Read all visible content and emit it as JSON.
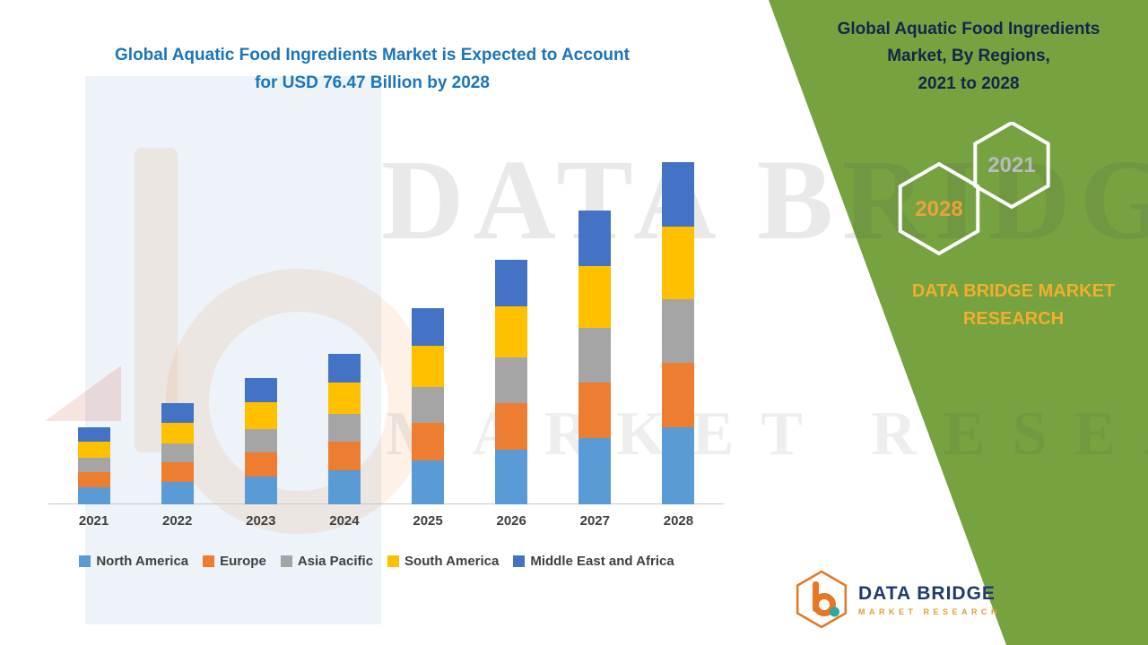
{
  "title": {
    "line1": "Global Aquatic Food Ingredients Market is Expected to Account",
    "line2": "for USD 76.47 Billion by 2028",
    "color": "#1B75BC"
  },
  "panel": {
    "bg_color": "#76A240",
    "heading_lines": [
      "Global Aquatic Food Ingredients",
      "Market, By Regions,",
      "2021 to 2028"
    ],
    "heading_color": "#10284a",
    "badge_back": "2021",
    "badge_back_color": "#b9bbbd",
    "badge_front": "2028",
    "badge_front_color": "#E8A33D",
    "brand_line1": "DATA BRIDGE MARKET",
    "brand_line2": "RESEARCH",
    "brand_color": "#EFAF2E"
  },
  "watermark": {
    "line1": "DATA BRIDGE",
    "line2": "MARKET RESEARCH"
  },
  "logo": {
    "name": "DATA BRIDGE",
    "sub": "MARKET RESEARCH"
  },
  "chart_data": {
    "type": "bar",
    "stacked": true,
    "title": "Global Aquatic Food Ingredients Market is Expected to Account for USD 76.47 Billion by 2028",
    "categories": [
      "2021",
      "2022",
      "2023",
      "2024",
      "2025",
      "2026",
      "2027",
      "2028"
    ],
    "series": [
      {
        "name": "North America",
        "color": "#5B9BD5",
        "values": [
          3.9,
          5.1,
          6.3,
          7.6,
          9.9,
          12.3,
          14.8,
          17.2
        ]
      },
      {
        "name": "Europe",
        "color": "#ED7D31",
        "values": [
          3.3,
          4.3,
          5.4,
          6.4,
          8.3,
          10.4,
          12.5,
          14.5
        ]
      },
      {
        "name": "Asia Pacific",
        "color": "#A5A5A5",
        "values": [
          3.2,
          4.2,
          5.2,
          6.2,
          8.1,
          10.1,
          12.1,
          14.2
        ]
      },
      {
        "name": "South America",
        "color": "#FFC000",
        "values": [
          3.6,
          4.7,
          5.9,
          7.1,
          9.2,
          11.5,
          13.8,
          16.1
        ]
      },
      {
        "name": "Middle East and Africa",
        "color": "#4472C4",
        "values": [
          3.3,
          4.3,
          5.4,
          6.3,
          8.3,
          10.4,
          12.5,
          14.5
        ]
      }
    ],
    "totals": [
      17.3,
      22.6,
      28.2,
      33.6,
      43.8,
      54.7,
      65.7,
      76.47
    ],
    "xlabel": "",
    "ylabel": "",
    "ylim": [
      0,
      80
    ],
    "grid": false,
    "legend_position": "bottom"
  }
}
